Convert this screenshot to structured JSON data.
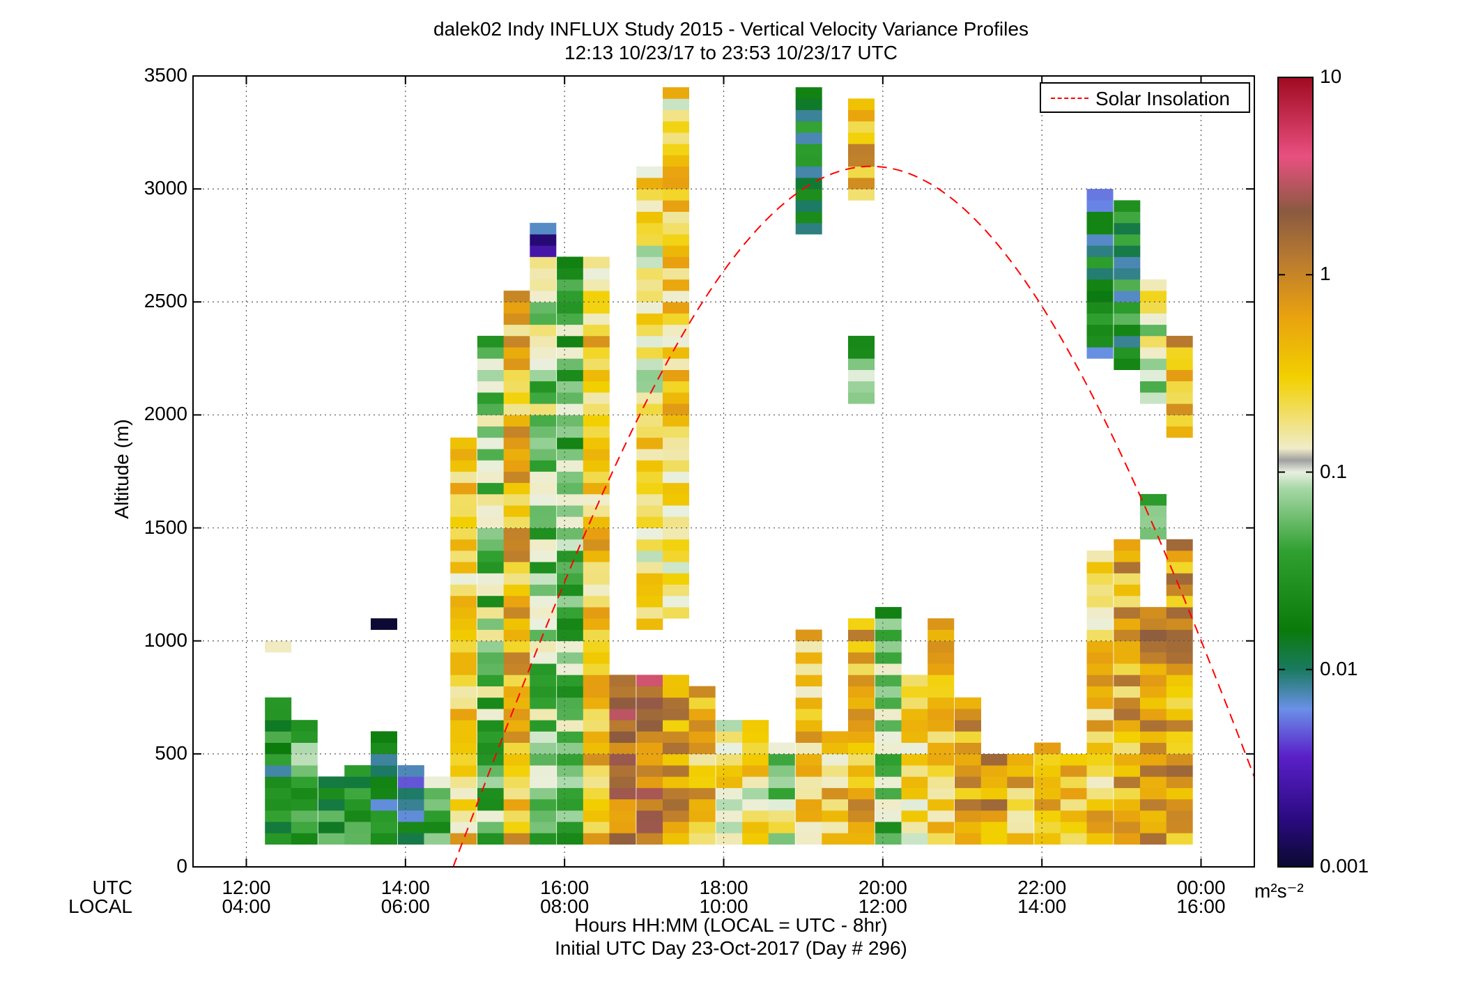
{
  "title_line1": "dalek02 Indy INFLUX Study 2015 - Vertical Velocity Variance Profiles",
  "title_line2": "12:13 10/23/17 to 23:53 10/23/17  UTC",
  "ylabel": "Altitude (m)",
  "xlabel_line1": "Hours HH:MM  (LOCAL = UTC - 8hr)",
  "xlabel_line2": "Initial UTC Day 23-Oct-2017 (Day # 296)",
  "row_labels": [
    "UTC",
    "LOCAL"
  ],
  "legend_label": "Solar Insolation",
  "colorbar_unit": "m²s⁻²",
  "colors": {
    "solar_line": "#ff0000",
    "grid": "#555555"
  },
  "chart_data": {
    "type": "heatmap",
    "title": "dalek02 Indy INFLUX Study 2015 - Vertical Velocity Variance Profiles",
    "ylabel": "Altitude (m)",
    "ylim": [
      0,
      3500
    ],
    "xlim": [
      11.33,
      24.67
    ],
    "x_unit": "UTC hours",
    "yticks": [
      0,
      500,
      1000,
      1500,
      2000,
      2500,
      3000,
      3500
    ],
    "xticks": [
      {
        "utc": "12:00",
        "local": "04:00"
      },
      {
        "utc": "14:00",
        "local": "06:00"
      },
      {
        "utc": "16:00",
        "local": "08:00"
      },
      {
        "utc": "18:00",
        "local": "10:00"
      },
      {
        "utc": "20:00",
        "local": "12:00"
      },
      {
        "utc": "22:00",
        "local": "14:00"
      },
      {
        "utc": "00:00",
        "local": "16:00"
      }
    ],
    "colorbar": {
      "scale": "log",
      "min": 0.001,
      "max": 10,
      "tick_labels": [
        "10",
        "1",
        "0.1",
        "0.01",
        "0.001"
      ]
    },
    "grid": true,
    "legend_placement": "top-right",
    "bin_width_hours": 0.333,
    "bin_height_m": 50,
    "column_centers_utc": [
      12.4,
      12.73,
      13.07,
      13.4,
      13.73,
      14.07,
      14.4,
      14.73,
      15.07,
      15.4,
      15.73,
      16.07,
      16.4,
      16.73,
      17.07,
      17.4,
      17.73,
      18.07,
      18.4,
      18.73,
      19.07,
      19.4,
      19.73,
      20.07,
      20.4,
      20.73,
      21.07,
      21.4,
      21.73,
      22.07,
      22.4,
      22.73,
      23.07,
      23.4,
      23.73
    ],
    "profiles": [
      {
        "col": 0,
        "runs": [
          [
            100,
            750,
            0.02
          ],
          [
            950,
            1000,
            0.07
          ]
        ]
      },
      {
        "col": 1,
        "runs": [
          [
            100,
            650,
            0.04
          ]
        ]
      },
      {
        "col": 2,
        "runs": [
          [
            100,
            400,
            0.03
          ]
        ]
      },
      {
        "col": 3,
        "runs": [
          [
            100,
            450,
            0.03
          ]
        ]
      },
      {
        "col": 4,
        "runs": [
          [
            100,
            600,
            0.015
          ],
          [
            1050,
            1100,
            0.0011
          ]
        ]
      },
      {
        "col": 5,
        "runs": [
          [
            100,
            450,
            0.012
          ]
        ]
      },
      {
        "col": 6,
        "runs": [
          [
            100,
            400,
            0.05
          ]
        ]
      },
      {
        "col": 7,
        "runs": [
          [
            100,
            1900,
            0.3
          ]
        ]
      },
      {
        "col": 8,
        "runs": [
          [
            100,
            2350,
            0.06
          ]
        ]
      },
      {
        "col": 9,
        "runs": [
          [
            100,
            2550,
            0.4
          ]
        ]
      },
      {
        "col": 10,
        "runs": [
          [
            100,
            2700,
            0.07
          ],
          [
            2700,
            2850,
            0.004
          ]
        ]
      },
      {
        "col": 11,
        "runs": [
          [
            100,
            2700,
            0.05
          ]
        ]
      },
      {
        "col": 12,
        "runs": [
          [
            100,
            2700,
            0.3
          ]
        ]
      },
      {
        "col": 13,
        "runs": [
          [
            100,
            850,
            1.2
          ]
        ]
      },
      {
        "col": 14,
        "runs": [
          [
            100,
            850,
            1.5
          ],
          [
            1050,
            3100,
            0.2
          ]
        ]
      },
      {
        "col": 15,
        "runs": [
          [
            100,
            850,
            0.8
          ],
          [
            1100,
            3450,
            0.25
          ]
        ]
      },
      {
        "col": 16,
        "runs": [
          [
            100,
            800,
            0.4
          ]
        ]
      },
      {
        "col": 17,
        "runs": [
          [
            100,
            650,
            0.2
          ]
        ]
      },
      {
        "col": 18,
        "runs": [
          [
            100,
            650,
            0.2
          ]
        ]
      },
      {
        "col": 19,
        "runs": [
          [
            100,
            550,
            0.1
          ]
        ]
      },
      {
        "col": 20,
        "runs": [
          [
            100,
            1050,
            0.35
          ],
          [
            2800,
            3450,
            0.02
          ]
        ]
      },
      {
        "col": 21,
        "runs": [
          [
            100,
            600,
            0.3
          ]
        ]
      },
      {
        "col": 22,
        "runs": [
          [
            100,
            1100,
            0.5
          ],
          [
            2050,
            2350,
            0.05
          ],
          [
            2950,
            3400,
            0.4
          ]
        ]
      },
      {
        "col": 23,
        "runs": [
          [
            100,
            1150,
            0.05
          ]
        ]
      },
      {
        "col": 24,
        "runs": [
          [
            100,
            850,
            0.25
          ]
        ]
      },
      {
        "col": 25,
        "runs": [
          [
            100,
            1100,
            0.35
          ]
        ]
      },
      {
        "col": 26,
        "runs": [
          [
            100,
            750,
            0.5
          ]
        ]
      },
      {
        "col": 27,
        "runs": [
          [
            100,
            500,
            0.6
          ]
        ]
      },
      {
        "col": 28,
        "runs": [
          [
            100,
            500,
            0.4
          ]
        ]
      },
      {
        "col": 29,
        "runs": [
          [
            100,
            550,
            0.45
          ]
        ]
      },
      {
        "col": 30,
        "runs": [
          [
            100,
            500,
            0.35
          ]
        ]
      },
      {
        "col": 31,
        "runs": [
          [
            100,
            1400,
            0.3
          ],
          [
            2250,
            3000,
            0.015
          ]
        ]
      },
      {
        "col": 32,
        "runs": [
          [
            100,
            1450,
            0.5
          ],
          [
            2200,
            2950,
            0.02
          ]
        ]
      },
      {
        "col": 33,
        "runs": [
          [
            100,
            1150,
            0.9
          ],
          [
            1450,
            1650,
            0.05
          ],
          [
            2050,
            2600,
            0.1
          ]
        ]
      },
      {
        "col": 34,
        "runs": [
          [
            100,
            1450,
            0.6
          ],
          [
            1900,
            2350,
            0.5
          ]
        ]
      }
    ],
    "solar_insolation": {
      "start_utc": 14.6,
      "peak_utc": 19.85,
      "peak_altitude_m": 3100
    }
  }
}
